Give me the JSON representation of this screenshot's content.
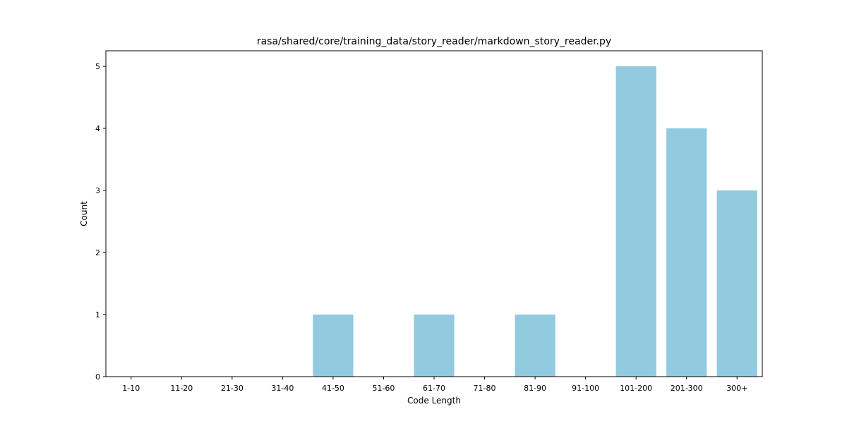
{
  "chart_data": {
    "type": "bar",
    "title": "rasa/shared/core/training_data/story_reader/markdown_story_reader.py",
    "xlabel": "Code Length",
    "ylabel": "Count",
    "categories": [
      "1-10",
      "11-20",
      "21-30",
      "31-40",
      "41-50",
      "51-60",
      "61-70",
      "71-80",
      "81-90",
      "91-100",
      "101-200",
      "201-300",
      "300+"
    ],
    "values": [
      0,
      0,
      0,
      0,
      1,
      0,
      1,
      0,
      1,
      0,
      5,
      4,
      3
    ],
    "ylim": [
      0,
      5.25
    ],
    "yticks": [
      0,
      1,
      2,
      3,
      4,
      5
    ],
    "bar_color": "#92cadf",
    "grid": false,
    "legend": "none"
  }
}
